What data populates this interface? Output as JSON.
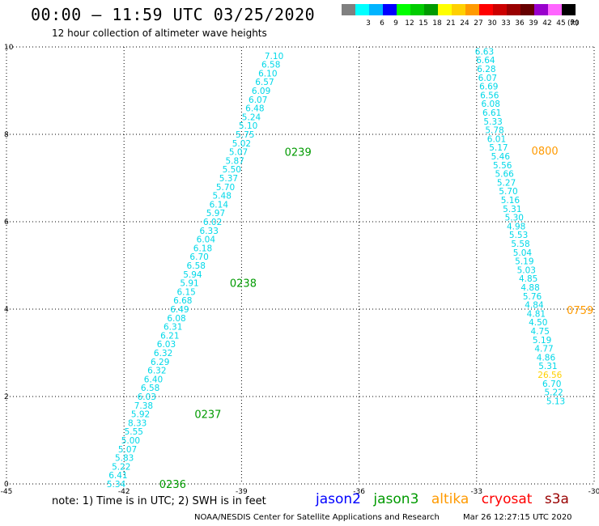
{
  "header": {
    "title": "00:00 – 11:59 UTC 03/25/2020",
    "subtitle": "12 hour collection of altimeter wave heights"
  },
  "colorbar": {
    "unit": "(ft)",
    "bins": [
      {
        "color": "#808080",
        "label": ""
      },
      {
        "color": "#00ffff",
        "label": "3"
      },
      {
        "color": "#00b4ff",
        "label": "6"
      },
      {
        "color": "#0000ff",
        "label": "9"
      },
      {
        "color": "#00ff00",
        "label": "12"
      },
      {
        "color": "#00cc00",
        "label": "15"
      },
      {
        "color": "#009a00",
        "label": "18"
      },
      {
        "color": "#ffff00",
        "label": "21"
      },
      {
        "color": "#ffd000",
        "label": "24"
      },
      {
        "color": "#ff9a00",
        "label": "27"
      },
      {
        "color": "#ff0000",
        "label": "30"
      },
      {
        "color": "#cc0000",
        "label": "33"
      },
      {
        "color": "#990000",
        "label": "36"
      },
      {
        "color": "#660000",
        "label": "39"
      },
      {
        "color": "#9900cc",
        "label": "42"
      },
      {
        "color": "#ff66ff",
        "label": "45"
      },
      {
        "color": "#000000",
        "label": "70"
      }
    ]
  },
  "note": "note: 1) Time is in UTC; 2) SWH is in feet",
  "legend": [
    {
      "label": "jason2",
      "color": "#0000ff"
    },
    {
      "label": "jason3",
      "color": "#009a00"
    },
    {
      "label": "altika",
      "color": "#ff9a00"
    },
    {
      "label": "cryosat",
      "color": "#ff0000"
    },
    {
      "label": "s3a",
      "color": "#990000"
    }
  ],
  "footer": {
    "left": "NOAA/NESDIS Center for Satellite Applications and Research",
    "right": "Mar 26 12:27:15 UTC 2020"
  },
  "chart_data": {
    "type": "scatter",
    "xlim": [
      -45,
      -30
    ],
    "ylim": [
      0,
      10
    ],
    "xticks": [
      "-45",
      "-42",
      "-39",
      "-36",
      "-33",
      "-30"
    ],
    "yticks": [
      "0",
      "2",
      "4",
      "6",
      "8",
      "10"
    ],
    "grid": true,
    "point_color": "#00d8e8",
    "tracks": [
      {
        "satellite": "jason3",
        "label_color": "#009a00",
        "times": [
          {
            "label": "0236",
            "x": -41.1,
            "y": 0.0
          },
          {
            "label": "0237",
            "x": -40.2,
            "y": 1.6
          },
          {
            "label": "0238",
            "x": -39.3,
            "y": 4.6
          },
          {
            "label": "0239",
            "x": -37.9,
            "y": 7.6
          }
        ],
        "points": [
          {
            "x": -42.2,
            "y": 0.0,
            "value": "5.34"
          },
          {
            "x": -42.15,
            "y": 0.2,
            "value": "6.41"
          },
          {
            "x": -42.07,
            "y": 0.4,
            "value": "5.22"
          },
          {
            "x": -41.99,
            "y": 0.6,
            "value": "5.83"
          },
          {
            "x": -41.91,
            "y": 0.8,
            "value": "5.07"
          },
          {
            "x": -41.83,
            "y": 1.0,
            "value": "5.00"
          },
          {
            "x": -41.75,
            "y": 1.2,
            "value": "5.55"
          },
          {
            "x": -41.66,
            "y": 1.4,
            "value": "8.33"
          },
          {
            "x": -41.58,
            "y": 1.6,
            "value": "5.92"
          },
          {
            "x": -41.5,
            "y": 1.8,
            "value": "7.38"
          },
          {
            "x": -41.42,
            "y": 2.0,
            "value": "6.03"
          },
          {
            "x": -41.33,
            "y": 2.2,
            "value": "6.58"
          },
          {
            "x": -41.25,
            "y": 2.4,
            "value": "6.40"
          },
          {
            "x": -41.16,
            "y": 2.6,
            "value": "6.32"
          },
          {
            "x": -41.08,
            "y": 2.8,
            "value": "6.29"
          },
          {
            "x": -41.0,
            "y": 3.0,
            "value": "6.32"
          },
          {
            "x": -40.92,
            "y": 3.2,
            "value": "6.03"
          },
          {
            "x": -40.83,
            "y": 3.4,
            "value": "6.21"
          },
          {
            "x": -40.75,
            "y": 3.6,
            "value": "6.31"
          },
          {
            "x": -40.66,
            "y": 3.8,
            "value": "6.08"
          },
          {
            "x": -40.58,
            "y": 4.0,
            "value": "6.49"
          },
          {
            "x": -40.5,
            "y": 4.2,
            "value": "6.68"
          },
          {
            "x": -40.41,
            "y": 4.4,
            "value": "6.15"
          },
          {
            "x": -40.33,
            "y": 4.6,
            "value": "5.91"
          },
          {
            "x": -40.25,
            "y": 4.8,
            "value": "5.94"
          },
          {
            "x": -40.16,
            "y": 5.0,
            "value": "6.58"
          },
          {
            "x": -40.08,
            "y": 5.2,
            "value": "6.70"
          },
          {
            "x": -39.99,
            "y": 5.4,
            "value": "6.18"
          },
          {
            "x": -39.91,
            "y": 5.6,
            "value": "6.04"
          },
          {
            "x": -39.83,
            "y": 5.8,
            "value": "6.33"
          },
          {
            "x": -39.74,
            "y": 6.0,
            "value": "6.02"
          },
          {
            "x": -39.66,
            "y": 6.2,
            "value": "5.97"
          },
          {
            "x": -39.58,
            "y": 6.4,
            "value": "6.14"
          },
          {
            "x": -39.5,
            "y": 6.6,
            "value": "5.48"
          },
          {
            "x": -39.41,
            "y": 6.8,
            "value": "5.70"
          },
          {
            "x": -39.33,
            "y": 7.0,
            "value": "5.37"
          },
          {
            "x": -39.25,
            "y": 7.2,
            "value": "5.50"
          },
          {
            "x": -39.17,
            "y": 7.4,
            "value": "5.87"
          },
          {
            "x": -39.08,
            "y": 7.6,
            "value": "5.07"
          },
          {
            "x": -39.0,
            "y": 7.8,
            "value": "5.02"
          },
          {
            "x": -38.91,
            "y": 8.0,
            "value": "5.75"
          },
          {
            "x": -38.83,
            "y": 8.2,
            "value": "5.10"
          },
          {
            "x": -38.75,
            "y": 8.4,
            "value": "5.24"
          },
          {
            "x": -38.66,
            "y": 8.6,
            "value": "6.48"
          },
          {
            "x": -38.58,
            "y": 8.8,
            "value": "6.07"
          },
          {
            "x": -38.5,
            "y": 9.0,
            "value": "6.09"
          },
          {
            "x": -38.41,
            "y": 9.2,
            "value": "6.57"
          },
          {
            "x": -38.33,
            "y": 9.4,
            "value": "6.10"
          },
          {
            "x": -38.25,
            "y": 9.6,
            "value": "6.58"
          },
          {
            "x": -38.17,
            "y": 9.8,
            "value": "7.10"
          }
        ]
      },
      {
        "satellite": "altika",
        "label_color": "#ff9a00",
        "times": [
          {
            "label": "0759",
            "x": -30.7,
            "y": 3.98
          },
          {
            "label": "0800",
            "x": -31.6,
            "y": 7.63
          }
        ],
        "points": [
          {
            "x": -32.8,
            "y": 9.9,
            "value": "6.63"
          },
          {
            "x": -32.77,
            "y": 9.7,
            "value": "6.64"
          },
          {
            "x": -32.75,
            "y": 9.5,
            "value": "6.28"
          },
          {
            "x": -32.72,
            "y": 9.3,
            "value": "6.07"
          },
          {
            "x": -32.69,
            "y": 9.1,
            "value": "6.69"
          },
          {
            "x": -32.67,
            "y": 8.9,
            "value": "6.56"
          },
          {
            "x": -32.64,
            "y": 8.7,
            "value": "6.08"
          },
          {
            "x": -32.61,
            "y": 8.5,
            "value": "6.61"
          },
          {
            "x": -32.58,
            "y": 8.3,
            "value": "5.33"
          },
          {
            "x": -32.54,
            "y": 8.1,
            "value": "5.78"
          },
          {
            "x": -32.49,
            "y": 7.9,
            "value": "6.01"
          },
          {
            "x": -32.44,
            "y": 7.7,
            "value": "5.17"
          },
          {
            "x": -32.39,
            "y": 7.5,
            "value": "5.46"
          },
          {
            "x": -32.34,
            "y": 7.3,
            "value": "5.56"
          },
          {
            "x": -32.29,
            "y": 7.1,
            "value": "5.66"
          },
          {
            "x": -32.24,
            "y": 6.9,
            "value": "5.27"
          },
          {
            "x": -32.19,
            "y": 6.7,
            "value": "5.70"
          },
          {
            "x": -32.14,
            "y": 6.5,
            "value": "5.16"
          },
          {
            "x": -32.09,
            "y": 6.3,
            "value": "5.31"
          },
          {
            "x": -32.04,
            "y": 6.1,
            "value": "5.30"
          },
          {
            "x": -31.99,
            "y": 5.9,
            "value": "4.98"
          },
          {
            "x": -31.93,
            "y": 5.7,
            "value": "5.53"
          },
          {
            "x": -31.88,
            "y": 5.5,
            "value": "5.58"
          },
          {
            "x": -31.83,
            "y": 5.3,
            "value": "5.04"
          },
          {
            "x": -31.78,
            "y": 5.1,
            "value": "5.19"
          },
          {
            "x": -31.73,
            "y": 4.9,
            "value": "5.03"
          },
          {
            "x": -31.68,
            "y": 4.7,
            "value": "4.85"
          },
          {
            "x": -31.63,
            "y": 4.5,
            "value": "4.88"
          },
          {
            "x": -31.58,
            "y": 4.3,
            "value": "5.76"
          },
          {
            "x": -31.53,
            "y": 4.1,
            "value": "4.84"
          },
          {
            "x": -31.48,
            "y": 3.9,
            "value": "4.81"
          },
          {
            "x": -31.43,
            "y": 3.7,
            "value": "4.50"
          },
          {
            "x": -31.38,
            "y": 3.5,
            "value": "4.75"
          },
          {
            "x": -31.33,
            "y": 3.3,
            "value": "5.19"
          },
          {
            "x": -31.28,
            "y": 3.1,
            "value": "4.77"
          },
          {
            "x": -31.23,
            "y": 2.9,
            "value": "4.86"
          },
          {
            "x": -31.18,
            "y": 2.7,
            "value": "5.31"
          },
          {
            "x": -31.13,
            "y": 2.5,
            "value": "26.56",
            "color": "#ffd000"
          },
          {
            "x": -31.08,
            "y": 2.3,
            "value": "6.70"
          },
          {
            "x": -31.03,
            "y": 2.1,
            "value": "5.22"
          },
          {
            "x": -30.98,
            "y": 1.9,
            "value": "5.13"
          }
        ]
      }
    ]
  }
}
